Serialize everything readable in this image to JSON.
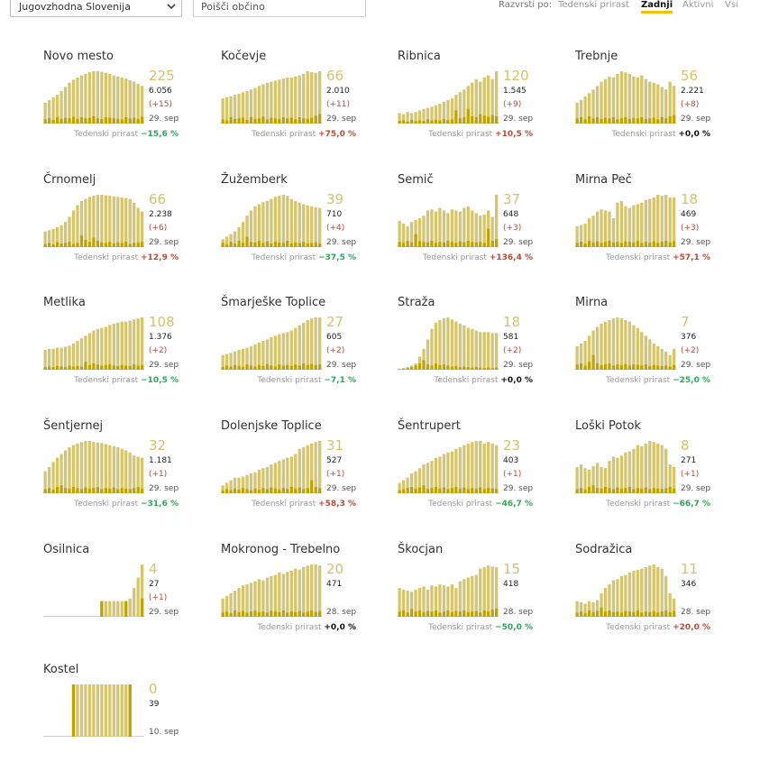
{
  "filters": {
    "region": "Jugovzhodna Slovenija",
    "search_placeholder": "Poišči občino"
  },
  "sort": {
    "label": "Razvrsti po:",
    "options": [
      "Tedenski prirast",
      "Zadnji",
      "Aktivni",
      "Vsi"
    ],
    "active": "Zadnji"
  },
  "colors": {
    "area": "#d6c56c",
    "bar": "#c0a300",
    "big_number": "#d4c36a",
    "negative": "#2aa85a",
    "positive": "#b84a3a"
  },
  "trend_label": "Tedenski prirast",
  "municipalities": [
    {
      "name": "Novo mesto",
      "active": "225",
      "total": "6.056",
      "delta": "(+15)",
      "date": "29. sep",
      "weekly": "−15,6 %",
      "trend": "neg",
      "area": [
        0.4,
        0.45,
        0.5,
        0.55,
        0.62,
        0.7,
        0.78,
        0.84,
        0.88,
        0.92,
        0.95,
        0.98,
        1.0,
        1.0,
        0.99,
        0.97,
        0.95,
        0.92,
        0.9,
        0.88,
        0.86,
        0.83,
        0.8,
        0.76,
        0.72
      ],
      "bars": [
        0.08,
        0.1,
        0.07,
        0.12,
        0.09,
        0.11,
        0.1,
        0.13,
        0.09,
        0.12,
        0.1,
        0.11,
        0.14,
        0.1,
        0.09,
        0.12,
        0.11,
        0.1,
        0.09,
        0.08,
        0.12,
        0.1,
        0.11,
        0.09,
        0.13
      ]
    },
    {
      "name": "Kočevje",
      "active": "66",
      "total": "2.010",
      "delta": "(+11)",
      "date": "29. sep",
      "weekly": "+75,0 %",
      "trend": "pos",
      "area": [
        0.48,
        0.5,
        0.52,
        0.55,
        0.57,
        0.6,
        0.62,
        0.65,
        0.68,
        0.72,
        0.75,
        0.78,
        0.8,
        0.82,
        0.84,
        0.86,
        0.88,
        0.88,
        0.9,
        0.92,
        0.95,
        1.0,
        0.98,
        0.97,
        1.0
      ],
      "bars": [
        0.08,
        0.06,
        0.12,
        0.09,
        0.1,
        0.11,
        0.07,
        0.12,
        0.09,
        0.1,
        0.13,
        0.08,
        0.11,
        0.1,
        0.09,
        0.12,
        0.1,
        0.11,
        0.08,
        0.12,
        0.1,
        0.09,
        0.11,
        0.15,
        0.18
      ]
    },
    {
      "name": "Ribnica",
      "active": "120",
      "total": "1.545",
      "delta": "(+9)",
      "date": "29. sep",
      "weekly": "+10,5 %",
      "trend": "pos",
      "area": [
        0.2,
        0.18,
        0.22,
        0.2,
        0.22,
        0.25,
        0.28,
        0.3,
        0.32,
        0.35,
        0.38,
        0.42,
        0.45,
        0.48,
        0.55,
        0.6,
        0.65,
        0.72,
        0.78,
        0.85,
        0.8,
        0.88,
        0.92,
        0.85,
        1.0
      ],
      "bars": [
        0.05,
        0.06,
        0.04,
        0.07,
        0.05,
        0.06,
        0.05,
        0.08,
        0.06,
        0.07,
        0.06,
        0.09,
        0.07,
        0.08,
        0.25,
        0.1,
        0.12,
        0.28,
        0.14,
        0.12,
        0.18,
        0.15,
        0.13,
        0.16,
        0.14
      ]
    },
    {
      "name": "Trebnje",
      "active": "56",
      "total": "2.221",
      "delta": "(+8)",
      "date": "29. sep",
      "weekly": "+0,0 %",
      "trend": "zero",
      "area": [
        0.4,
        0.45,
        0.52,
        0.58,
        0.65,
        0.72,
        0.8,
        0.85,
        0.9,
        0.88,
        0.95,
        1.0,
        0.98,
        0.95,
        0.9,
        0.88,
        0.92,
        0.85,
        0.8,
        0.78,
        0.75,
        0.7,
        0.65,
        0.8,
        0.72
      ],
      "bars": [
        0.1,
        0.12,
        0.08,
        0.14,
        0.1,
        0.12,
        0.09,
        0.11,
        0.1,
        0.12,
        0.08,
        0.1,
        0.12,
        0.09,
        0.11,
        0.1,
        0.12,
        0.09,
        0.1,
        0.11,
        0.08,
        0.12,
        0.1,
        0.14,
        0.16
      ]
    },
    {
      "name": "Črnomelj",
      "active": "66",
      "total": "2.238",
      "delta": "(+6)",
      "date": "29. sep",
      "weekly": "+12,9 %",
      "trend": "pos",
      "area": [
        0.3,
        0.32,
        0.35,
        0.38,
        0.42,
        0.48,
        0.58,
        0.7,
        0.8,
        0.88,
        0.92,
        0.96,
        0.98,
        1.0,
        1.0,
        0.99,
        0.98,
        0.97,
        0.96,
        0.95,
        0.94,
        0.92,
        0.85,
        0.75,
        0.68
      ],
      "bars": [
        0.06,
        0.08,
        0.05,
        0.09,
        0.07,
        0.08,
        0.1,
        0.06,
        0.08,
        0.22,
        0.14,
        0.1,
        0.18,
        0.12,
        0.09,
        0.08,
        0.1,
        0.07,
        0.09,
        0.08,
        0.1,
        0.06,
        0.08,
        0.09,
        0.1
      ]
    },
    {
      "name": "Žužemberk",
      "active": "39",
      "total": "710",
      "delta": "(+4)",
      "date": "29. sep",
      "weekly": "−37,5 %",
      "trend": "neg",
      "area": [
        0.15,
        0.2,
        0.25,
        0.3,
        0.38,
        0.48,
        0.6,
        0.7,
        0.78,
        0.82,
        0.86,
        0.88,
        0.92,
        0.96,
        0.98,
        1.0,
        0.98,
        0.92,
        0.88,
        0.85,
        0.82,
        0.8,
        0.78,
        0.76,
        0.75
      ],
      "bars": [
        0.08,
        0.05,
        0.1,
        0.07,
        0.12,
        0.08,
        0.2,
        0.1,
        0.09,
        0.12,
        0.08,
        0.11,
        0.07,
        0.1,
        0.09,
        0.08,
        0.12,
        0.07,
        0.09,
        0.08,
        0.1,
        0.07,
        0.08,
        0.09,
        0.07
      ]
    },
    {
      "name": "Semič",
      "active": "37",
      "total": "648",
      "delta": "(+3)",
      "date": "29. sep",
      "weekly": "+136,4 %",
      "trend": "pos",
      "area": [
        0.5,
        0.45,
        0.4,
        0.48,
        0.52,
        0.55,
        0.6,
        0.7,
        0.72,
        0.68,
        0.75,
        0.7,
        0.65,
        0.72,
        0.7,
        0.68,
        0.75,
        0.78,
        0.7,
        0.65,
        0.6,
        0.62,
        0.7,
        0.58,
        1.0
      ],
      "bars": [
        0.1,
        0.08,
        0.12,
        0.09,
        0.25,
        0.11,
        0.1,
        0.09,
        0.12,
        0.08,
        0.1,
        0.09,
        0.12,
        0.1,
        0.08,
        0.11,
        0.09,
        0.12,
        0.1,
        0.09,
        0.1,
        0.08,
        0.35,
        0.12,
        0.15
      ]
    },
    {
      "name": "Mirna Peč",
      "active": "18",
      "total": "469",
      "delta": "(+3)",
      "date": "29. sep",
      "weekly": "+57,1 %",
      "trend": "pos",
      "area": [
        0.4,
        0.42,
        0.45,
        0.55,
        0.6,
        0.68,
        0.72,
        0.7,
        0.68,
        0.55,
        0.85,
        0.88,
        0.78,
        0.75,
        0.8,
        0.82,
        0.85,
        0.9,
        0.92,
        0.95,
        1.0,
        0.98,
        1.0,
        0.95,
        0.95
      ],
      "bars": [
        0.08,
        0.1,
        0.07,
        0.12,
        0.09,
        0.11,
        0.08,
        0.1,
        0.12,
        0.09,
        0.1,
        0.08,
        0.11,
        0.1,
        0.09,
        0.12,
        0.08,
        0.1,
        0.09,
        0.11,
        0.08,
        0.1,
        0.12,
        0.09,
        0.11
      ]
    },
    {
      "name": "Metlika",
      "active": "108",
      "total": "1.376",
      "delta": "(+2)",
      "date": "29. sep",
      "weekly": "−10,5 %",
      "trend": "neg",
      "area": [
        0.38,
        0.4,
        0.4,
        0.42,
        0.42,
        0.44,
        0.46,
        0.5,
        0.55,
        0.6,
        0.65,
        0.7,
        0.75,
        0.78,
        0.8,
        0.82,
        0.86,
        0.88,
        0.9,
        0.92,
        0.92,
        0.94,
        0.96,
        0.98,
        1.0
      ],
      "bars": [
        0.05,
        0.06,
        0.05,
        0.07,
        0.06,
        0.05,
        0.08,
        0.06,
        0.07,
        0.06,
        0.15,
        0.09,
        0.12,
        0.1,
        0.08,
        0.09,
        0.1,
        0.08,
        0.07,
        0.09,
        0.08,
        0.07,
        0.1,
        0.08,
        0.09
      ]
    },
    {
      "name": "Šmarješke Toplice",
      "active": "27",
      "total": "605",
      "delta": "(+2)",
      "date": "29. sep",
      "weekly": "−7,1 %",
      "trend": "neg",
      "area": [
        0.28,
        0.3,
        0.32,
        0.35,
        0.38,
        0.4,
        0.42,
        0.45,
        0.48,
        0.52,
        0.55,
        0.58,
        0.62,
        0.65,
        0.68,
        0.7,
        0.72,
        0.75,
        0.8,
        0.85,
        0.9,
        0.95,
        0.98,
        1.0,
        1.0
      ],
      "bars": [
        0.05,
        0.08,
        0.06,
        0.09,
        0.07,
        0.05,
        0.1,
        0.08,
        0.06,
        0.09,
        0.07,
        0.11,
        0.08,
        0.06,
        0.1,
        0.08,
        0.09,
        0.07,
        0.1,
        0.08,
        0.12,
        0.09,
        0.11,
        0.09,
        0.1
      ]
    },
    {
      "name": "Straža",
      "active": "18",
      "total": "581",
      "delta": "(+2)",
      "date": "29. sep",
      "weekly": "+0,0 %",
      "trend": "zero",
      "area": [
        0.02,
        0.03,
        0.05,
        0.08,
        0.12,
        0.25,
        0.4,
        0.58,
        0.78,
        0.9,
        0.95,
        0.98,
        1.0,
        0.96,
        0.92,
        0.88,
        0.85,
        0.8,
        0.78,
        0.75,
        0.72,
        0.72,
        0.72,
        0.7,
        0.7
      ],
      "bars": [
        0.01,
        0.02,
        0.03,
        0.05,
        0.08,
        0.12,
        0.18,
        0.1,
        0.08,
        0.12,
        0.09,
        0.1,
        0.08,
        0.06,
        0.07,
        0.05,
        0.06,
        0.05,
        0.04,
        0.05,
        0.04,
        0.03,
        0.04,
        0.03,
        0.04
      ]
    },
    {
      "name": "Mirna",
      "active": "7",
      "total": "376",
      "delta": "(+2)",
      "date": "29. sep",
      "weekly": "−25,0 %",
      "trend": "neg",
      "area": [
        0.45,
        0.5,
        0.55,
        0.65,
        0.75,
        0.82,
        0.88,
        0.92,
        0.95,
        0.98,
        1.0,
        0.98,
        0.95,
        0.92,
        0.85,
        0.8,
        0.72,
        0.65,
        0.58,
        0.5,
        0.45,
        0.4,
        0.35,
        0.28,
        0.4
      ],
      "bars": [
        0.1,
        0.12,
        0.08,
        0.15,
        0.28,
        0.12,
        0.09,
        0.1,
        0.12,
        0.08,
        0.1,
        0.09,
        0.11,
        0.08,
        0.1,
        0.09,
        0.08,
        0.1,
        0.07,
        0.09,
        0.08,
        0.07,
        0.08,
        0.06,
        0.09
      ]
    },
    {
      "name": "Šentjernej",
      "active": "32",
      "total": "1.181",
      "delta": "(+1)",
      "date": "29. sep",
      "weekly": "−31,6 %",
      "trend": "neg",
      "area": [
        0.42,
        0.5,
        0.6,
        0.68,
        0.75,
        0.82,
        0.88,
        0.92,
        0.95,
        0.98,
        1.0,
        1.0,
        0.98,
        0.97,
        0.96,
        0.94,
        0.92,
        0.9,
        0.88,
        0.85,
        0.82,
        0.78,
        0.72,
        0.7,
        0.68
      ],
      "bars": [
        0.08,
        0.1,
        0.07,
        0.12,
        0.15,
        0.1,
        0.09,
        0.12,
        0.1,
        0.08,
        0.11,
        0.09,
        0.1,
        0.12,
        0.08,
        0.1,
        0.09,
        0.11,
        0.08,
        0.1,
        0.09,
        0.08,
        0.1,
        0.12,
        0.09
      ]
    },
    {
      "name": "Dolenjske Toplice",
      "active": "31",
      "total": "527",
      "delta": "(+1)",
      "date": "29. sep",
      "weekly": "+58,3 %",
      "trend": "pos",
      "area": [
        0.15,
        0.2,
        0.25,
        0.3,
        0.3,
        0.32,
        0.35,
        0.38,
        0.4,
        0.45,
        0.48,
        0.5,
        0.55,
        0.58,
        0.62,
        0.65,
        0.68,
        0.7,
        0.75,
        0.85,
        0.88,
        0.92,
        0.95,
        0.98,
        1.0
      ],
      "bars": [
        0.05,
        0.08,
        0.06,
        0.09,
        0.07,
        0.1,
        0.08,
        0.06,
        0.09,
        0.07,
        0.1,
        0.08,
        0.11,
        0.09,
        0.07,
        0.1,
        0.08,
        0.12,
        0.09,
        0.11,
        0.08,
        0.1,
        0.25,
        0.12,
        0.1
      ]
    },
    {
      "name": "Šentrupert",
      "active": "23",
      "total": "403",
      "delta": "(+1)",
      "date": "29. sep",
      "weekly": "−46,7 %",
      "trend": "neg",
      "area": [
        0.2,
        0.25,
        0.3,
        0.38,
        0.42,
        0.48,
        0.55,
        0.58,
        0.62,
        0.68,
        0.7,
        0.75,
        0.78,
        0.8,
        0.85,
        0.88,
        0.92,
        0.95,
        0.98,
        1.0,
        1.0,
        0.95,
        0.98,
        0.95,
        0.92
      ],
      "bars": [
        0.06,
        0.08,
        0.1,
        0.12,
        0.09,
        0.11,
        0.15,
        0.08,
        0.1,
        0.12,
        0.09,
        0.11,
        0.08,
        0.1,
        0.12,
        0.09,
        0.11,
        0.08,
        0.1,
        0.09,
        0.11,
        0.08,
        0.1,
        0.09,
        0.08
      ]
    },
    {
      "name": "Loški Potok",
      "active": "8",
      "total": "271",
      "delta": "(+1)",
      "date": "29. sep",
      "weekly": "−66,7 %",
      "trend": "neg",
      "area": [
        0.5,
        0.55,
        0.48,
        0.45,
        0.52,
        0.58,
        0.5,
        0.48,
        0.62,
        0.7,
        0.68,
        0.72,
        0.78,
        0.8,
        0.85,
        0.92,
        0.9,
        0.95,
        1.0,
        0.98,
        0.95,
        0.92,
        0.85,
        0.55,
        0.5
      ],
      "bars": [
        0.08,
        0.1,
        0.07,
        0.12,
        0.15,
        0.1,
        0.09,
        0.12,
        0.1,
        0.08,
        0.11,
        0.09,
        0.1,
        0.12,
        0.08,
        0.1,
        0.09,
        0.11,
        0.08,
        0.1,
        0.09,
        0.08,
        0.1,
        0.12,
        0.09
      ]
    },
    {
      "name": "Osilnica",
      "active": "4",
      "total": "27",
      "delta": "(+1)",
      "date": "29. sep",
      "weekly": "",
      "trend": "zero",
      "area": [
        0,
        0,
        0,
        0,
        0,
        0,
        0,
        0,
        0,
        0,
        0,
        0,
        0,
        0,
        0.3,
        0.3,
        0.3,
        0.3,
        0.3,
        0.3,
        0.3,
        0.35,
        0.55,
        0.75,
        1.0
      ],
      "bars": [
        0,
        0,
        0,
        0,
        0,
        0,
        0,
        0,
        0,
        0,
        0,
        0,
        0,
        0,
        0.3,
        0,
        0,
        0,
        0,
        0,
        0.3,
        0,
        0,
        0,
        0.35
      ]
    },
    {
      "name": "Mokronog - Trebelno",
      "active": "20",
      "total": "471",
      "delta": "",
      "date": "28. sep",
      "weekly": "+0,0 %",
      "trend": "zero",
      "area": [
        0.35,
        0.4,
        0.45,
        0.5,
        0.55,
        0.6,
        0.62,
        0.65,
        0.68,
        0.72,
        0.7,
        0.75,
        0.78,
        0.8,
        0.85,
        0.82,
        0.86,
        0.88,
        0.92,
        0.9,
        0.95,
        0.98,
        1.0,
        1.0,
        0.98
      ],
      "bars": [
        0.08,
        0.1,
        0.07,
        0.12,
        0.09,
        0.11,
        0.08,
        0.1,
        0.12,
        0.09,
        0.1,
        0.08,
        0.11,
        0.1,
        0.09,
        0.12,
        0.08,
        0.1,
        0.09,
        0.11,
        0.08,
        0.1,
        0.12,
        0.09,
        0.11
      ]
    },
    {
      "name": "Škocjan",
      "active": "15",
      "total": "418",
      "delta": "",
      "date": "28. sep",
      "weekly": "−50,0 %",
      "trend": "neg",
      "area": [
        0.55,
        0.52,
        0.5,
        0.48,
        0.52,
        0.55,
        0.58,
        0.52,
        0.6,
        0.58,
        0.62,
        0.6,
        0.58,
        0.62,
        0.55,
        0.68,
        0.72,
        0.75,
        0.78,
        0.8,
        0.92,
        0.95,
        0.98,
        0.96,
        0.95
      ],
      "bars": [
        0.1,
        0.12,
        0.08,
        0.15,
        0.1,
        0.12,
        0.09,
        0.11,
        0.1,
        0.12,
        0.08,
        0.1,
        0.12,
        0.09,
        0.11,
        0.1,
        0.12,
        0.09,
        0.1,
        0.11,
        0.08,
        0.12,
        0.1,
        0.14,
        0.16
      ]
    },
    {
      "name": "Sodražica",
      "active": "11",
      "total": "346",
      "delta": "",
      "date": "28. sep",
      "weekly": "+20,0 %",
      "trend": "pos",
      "area": [
        0.3,
        0.28,
        0.25,
        0.3,
        0.28,
        0.32,
        0.45,
        0.55,
        0.62,
        0.7,
        0.72,
        0.78,
        0.8,
        0.85,
        0.88,
        0.9,
        0.92,
        0.95,
        0.98,
        1.0,
        0.95,
        0.92,
        0.78,
        0.45,
        0.35
      ],
      "bars": [
        0.08,
        0.1,
        0.07,
        0.12,
        0.09,
        0.11,
        0.18,
        0.1,
        0.12,
        0.09,
        0.1,
        0.08,
        0.11,
        0.1,
        0.09,
        0.12,
        0.08,
        0.1,
        0.09,
        0.11,
        0.08,
        0.1,
        0.12,
        0.09,
        0.11
      ]
    },
    {
      "name": "Kostel",
      "active": "0",
      "total": "39",
      "delta": "",
      "date": "10. sep",
      "weekly": "",
      "trend": "zero",
      "area": [
        0,
        0,
        0,
        0,
        0,
        0,
        0,
        1.0,
        1.0,
        1.0,
        1.0,
        1.0,
        1.0,
        1.0,
        1.0,
        1.0,
        1.0,
        1.0,
        1.0,
        1.0,
        1.0,
        1.0,
        0,
        0,
        0
      ],
      "bars": [
        0,
        0,
        0,
        0,
        0,
        0,
        0,
        1.0,
        0,
        0,
        0,
        0,
        0,
        0,
        0,
        0,
        0,
        0,
        0,
        0,
        0,
        1.0,
        0,
        0,
        0
      ]
    }
  ]
}
